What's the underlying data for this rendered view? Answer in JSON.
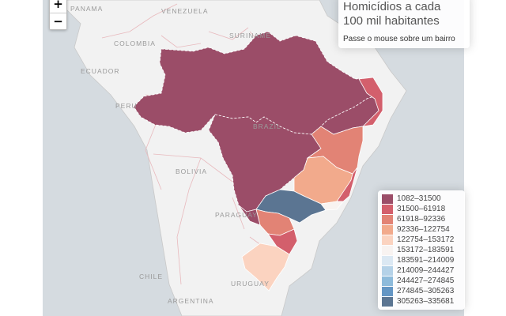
{
  "zoom": {
    "in_label": "+",
    "out_label": "−"
  },
  "info": {
    "title_line1": "Homicídios a cada",
    "title_line2": "100 mil habitantes",
    "hint": "Passe o mouse sobre um bairro"
  },
  "map_labels": {
    "panama": "PANAMA",
    "venezuela": "VENEZUELA",
    "suriname": "SURINAME",
    "colombia": "COLOMBIA",
    "ecuador": "ECUADOR",
    "peru": "PERU",
    "brazil": "BRAZIL",
    "bolivia": "BOLIVIA",
    "paraguay": "PARAGUAY",
    "chile": "CHILE",
    "uruguay": "URUGUAY",
    "argentina": "ARGENTINA"
  },
  "legend": [
    {
      "label": "1082–31500",
      "color": "#9b4d68"
    },
    {
      "label": "31500–61918",
      "color": "#d35f6c"
    },
    {
      "label": "61918–92336",
      "color": "#e28375"
    },
    {
      "label": "92336–122754",
      "color": "#f2aa8c"
    },
    {
      "label": "122754–153172",
      "color": "#fbd3c0"
    },
    {
      "label": "153172–183591",
      "color": "#f8f3f1"
    },
    {
      "label": "183591–214009",
      "color": "#dbe8f3"
    },
    {
      "label": "214009–244427",
      "color": "#b5d2e8"
    },
    {
      "label": "244427–274845",
      "color": "#8ebbdb"
    },
    {
      "label": "274845–305263",
      "color": "#6496c4"
    },
    {
      "label": "305263–335681",
      "color": "#5b7592"
    }
  ]
}
